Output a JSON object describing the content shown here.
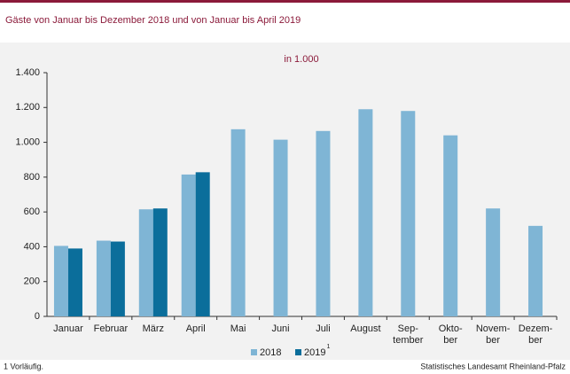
{
  "chart_data": {
    "type": "bar",
    "title": "Gäste von Januar bis Dezember 2018 und von Januar bis April 2019",
    "subtitle": "in 1.000",
    "categories": [
      "Januar",
      "Februar",
      "März",
      "April",
      "Mai",
      "Juni",
      "Juli",
      "August",
      "Sep-\ntember",
      "Okto-\nber",
      "Novem-\nber",
      "Dezem-\nber"
    ],
    "series": [
      {
        "name": "2018",
        "color": "#7fb5d5",
        "values": [
          405,
          435,
          615,
          815,
          1075,
          1015,
          1065,
          1190,
          1180,
          1040,
          620,
          520
        ]
      },
      {
        "name": "2019",
        "note": "1",
        "color": "#0b6e9b",
        "values": [
          390,
          430,
          620,
          828,
          null,
          null,
          null,
          null,
          null,
          null,
          null,
          null
        ]
      }
    ],
    "ylim": [
      0,
      1400
    ],
    "yticks": [
      0,
      200,
      400,
      600,
      800,
      {
        "value": 1000,
        "label": "1.000"
      },
      {
        "value": 1200,
        "label": "1.200"
      },
      {
        "value": 1400,
        "label": "1.400"
      }
    ],
    "footnote": "1 Vorläufig.",
    "source": "Statistisches Landesamt Rheinland-Pfalz"
  }
}
